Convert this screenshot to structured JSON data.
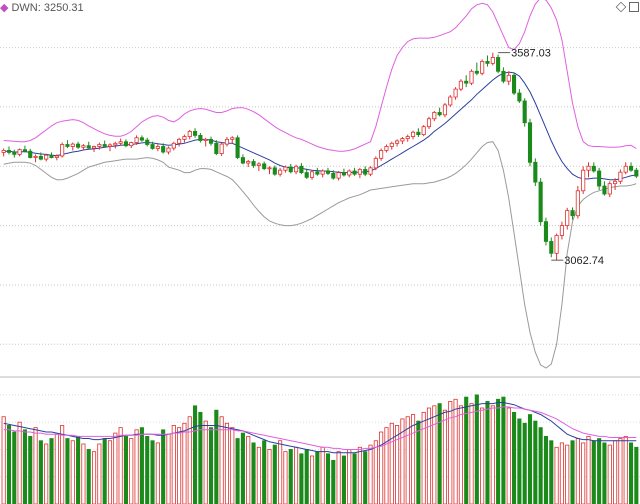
{
  "indicator": {
    "label": "DWN: 3250.31",
    "marker_color": "#c050c0"
  },
  "toolbar": {
    "icons": [
      "diamond-icon",
      "square-icon"
    ]
  },
  "colors": {
    "up": "#e03030",
    "down": "#1a8a1a",
    "ma": "#2b3fa0",
    "upper_band": "#e060e0",
    "lower_band": "#9a9a9a"
  },
  "chart_data": {
    "type": "candlestick",
    "annotations": [
      {
        "text": "3587.03",
        "price": 3587.03,
        "index": 93
      },
      {
        "text": "3062.74",
        "price": 3062.74,
        "index": 103
      }
    ],
    "price": {
      "ylim": [
        2780,
        3700
      ],
      "gridlines": [
        3600,
        3450,
        3300,
        3150,
        3000,
        2850
      ],
      "grid": true
    },
    "candles": [
      [
        3335,
        3345,
        3325,
        3340
      ],
      [
        3340,
        3350,
        3330,
        3335
      ],
      [
        3335,
        3342,
        3322,
        3330
      ],
      [
        3330,
        3345,
        3325,
        3342
      ],
      [
        3342,
        3352,
        3335,
        3338
      ],
      [
        3338,
        3344,
        3320,
        3322
      ],
      [
        3322,
        3330,
        3310,
        3325
      ],
      [
        3325,
        3335,
        3315,
        3318
      ],
      [
        3318,
        3330,
        3312,
        3328
      ],
      [
        3328,
        3335,
        3320,
        3322
      ],
      [
        3322,
        3330,
        3315,
        3326
      ],
      [
        3326,
        3360,
        3322,
        3355
      ],
      [
        3355,
        3366,
        3346,
        3350
      ],
      [
        3350,
        3360,
        3340,
        3356
      ],
      [
        3356,
        3362,
        3344,
        3348
      ],
      [
        3348,
        3356,
        3340,
        3352
      ],
      [
        3352,
        3362,
        3344,
        3346
      ],
      [
        3346,
        3352,
        3336,
        3350
      ],
      [
        3350,
        3360,
        3342,
        3355
      ],
      [
        3355,
        3365,
        3348,
        3350
      ],
      [
        3350,
        3358,
        3338,
        3354
      ],
      [
        3354,
        3362,
        3345,
        3358
      ],
      [
        3358,
        3370,
        3352,
        3362
      ],
      [
        3362,
        3368,
        3348,
        3352
      ],
      [
        3352,
        3362,
        3346,
        3360
      ],
      [
        3360,
        3378,
        3354,
        3372
      ],
      [
        3372,
        3378,
        3362,
        3366
      ],
      [
        3366,
        3372,
        3350,
        3355
      ],
      [
        3355,
        3362,
        3342,
        3345
      ],
      [
        3345,
        3356,
        3338,
        3350
      ],
      [
        3350,
        3358,
        3332,
        3336
      ],
      [
        3336,
        3350,
        3330,
        3346
      ],
      [
        3346,
        3362,
        3340,
        3358
      ],
      [
        3358,
        3372,
        3350,
        3368
      ],
      [
        3368,
        3380,
        3360,
        3375
      ],
      [
        3375,
        3392,
        3368,
        3388
      ],
      [
        3388,
        3396,
        3372,
        3378
      ],
      [
        3378,
        3384,
        3360,
        3365
      ],
      [
        3365,
        3372,
        3350,
        3368
      ],
      [
        3368,
        3375,
        3352,
        3358
      ],
      [
        3358,
        3366,
        3328,
        3332
      ],
      [
        3332,
        3360,
        3326,
        3356
      ],
      [
        3356,
        3374,
        3350,
        3368
      ],
      [
        3368,
        3376,
        3358,
        3372
      ],
      [
        3372,
        3378,
        3318,
        3322
      ],
      [
        3322,
        3330,
        3305,
        3308
      ],
      [
        3308,
        3316,
        3298,
        3312
      ],
      [
        3312,
        3318,
        3296,
        3302
      ],
      [
        3302,
        3310,
        3288,
        3306
      ],
      [
        3306,
        3312,
        3290,
        3294
      ],
      [
        3294,
        3300,
        3280,
        3296
      ],
      [
        3296,
        3302,
        3276,
        3280
      ],
      [
        3280,
        3296,
        3274,
        3290
      ],
      [
        3290,
        3302,
        3284,
        3298
      ],
      [
        3298,
        3306,
        3282,
        3286
      ],
      [
        3286,
        3304,
        3280,
        3300
      ],
      [
        3300,
        3308,
        3280,
        3284
      ],
      [
        3284,
        3294,
        3268,
        3272
      ],
      [
        3272,
        3290,
        3266,
        3286
      ],
      [
        3286,
        3296,
        3276,
        3280
      ],
      [
        3280,
        3292,
        3272,
        3288
      ],
      [
        3288,
        3296,
        3278,
        3282
      ],
      [
        3282,
        3290,
        3266,
        3270
      ],
      [
        3270,
        3288,
        3264,
        3284
      ],
      [
        3284,
        3294,
        3274,
        3278
      ],
      [
        3278,
        3292,
        3272,
        3288
      ],
      [
        3288,
        3296,
        3276,
        3280
      ],
      [
        3280,
        3296,
        3270,
        3292
      ],
      [
        3292,
        3300,
        3275,
        3280
      ],
      [
        3280,
        3300,
        3275,
        3296
      ],
      [
        3296,
        3325,
        3290,
        3320
      ],
      [
        3320,
        3345,
        3314,
        3340
      ],
      [
        3340,
        3355,
        3335,
        3350
      ],
      [
        3350,
        3362,
        3342,
        3358
      ],
      [
        3358,
        3368,
        3350,
        3364
      ],
      [
        3364,
        3374,
        3356,
        3370
      ],
      [
        3370,
        3380,
        3362,
        3375
      ],
      [
        3375,
        3390,
        3368,
        3386
      ],
      [
        3386,
        3396,
        3374,
        3380
      ],
      [
        3380,
        3404,
        3376,
        3400
      ],
      [
        3400,
        3425,
        3394,
        3420
      ],
      [
        3420,
        3440,
        3414,
        3436
      ],
      [
        3436,
        3448,
        3426,
        3430
      ],
      [
        3430,
        3460,
        3424,
        3455
      ],
      [
        3455,
        3480,
        3450,
        3475
      ],
      [
        3475,
        3500,
        3468,
        3495
      ],
      [
        3495,
        3520,
        3490,
        3515
      ],
      [
        3515,
        3530,
        3500,
        3510
      ],
      [
        3510,
        3545,
        3505,
        3540
      ],
      [
        3540,
        3562,
        3530,
        3535
      ],
      [
        3535,
        3570,
        3530,
        3565
      ],
      [
        3565,
        3580,
        3552,
        3560
      ],
      [
        3560,
        3587,
        3555,
        3575
      ],
      [
        3575,
        3582,
        3535,
        3540
      ],
      [
        3540,
        3550,
        3510,
        3515
      ],
      [
        3515,
        3540,
        3505,
        3530
      ],
      [
        3530,
        3534,
        3480,
        3485
      ],
      [
        3485,
        3495,
        3460,
        3465
      ],
      [
        3465,
        3472,
        3400,
        3410
      ],
      [
        3410,
        3420,
        3300,
        3310
      ],
      [
        3310,
        3320,
        3250,
        3260
      ],
      [
        3260,
        3270,
        3150,
        3160
      ],
      [
        3160,
        3170,
        3100,
        3110
      ],
      [
        3110,
        3120,
        3070,
        3080
      ],
      [
        3080,
        3130,
        3062.74,
        3125
      ],
      [
        3125,
        3160,
        3115,
        3150
      ],
      [
        3150,
        3195,
        3140,
        3188
      ],
      [
        3188,
        3196,
        3165,
        3175
      ],
      [
        3175,
        3250,
        3168,
        3238
      ],
      [
        3238,
        3300,
        3230,
        3290
      ],
      [
        3290,
        3310,
        3272,
        3300
      ],
      [
        3300,
        3310,
        3284,
        3288
      ],
      [
        3288,
        3296,
        3240,
        3250
      ],
      [
        3250,
        3262,
        3226,
        3230
      ],
      [
        3230,
        3262,
        3222,
        3256
      ],
      [
        3256,
        3270,
        3240,
        3262
      ],
      [
        3262,
        3292,
        3255,
        3285
      ],
      [
        3285,
        3310,
        3280,
        3300
      ],
      [
        3300,
        3310,
        3286,
        3290
      ],
      [
        3290,
        3296,
        3270,
        3275
      ]
    ],
    "ma": [
      3338,
      3338,
      3336,
      3336,
      3337,
      3335,
      3333,
      3331,
      3330,
      3328,
      3327,
      3330,
      3333,
      3336,
      3338,
      3341,
      3343,
      3344,
      3346,
      3348,
      3350,
      3351,
      3353,
      3354,
      3355,
      3357,
      3359,
      3360,
      3359,
      3357,
      3355,
      3353,
      3354,
      3356,
      3358,
      3362,
      3366,
      3368,
      3368,
      3366,
      3362,
      3360,
      3358,
      3358,
      3352,
      3346,
      3340,
      3334,
      3328,
      3322,
      3316,
      3308,
      3302,
      3298,
      3296,
      3296,
      3295,
      3292,
      3290,
      3289,
      3288,
      3288,
      3286,
      3285,
      3284,
      3284,
      3285,
      3285,
      3286,
      3288,
      3294,
      3302,
      3310,
      3318,
      3326,
      3334,
      3342,
      3350,
      3358,
      3366,
      3376,
      3388,
      3398,
      3408,
      3420,
      3432,
      3444,
      3456,
      3468,
      3482,
      3494,
      3506,
      3518,
      3528,
      3535,
      3538,
      3536,
      3528,
      3510,
      3488,
      3460,
      3428,
      3396,
      3364,
      3336,
      3312,
      3294,
      3280,
      3272,
      3268,
      3268,
      3270,
      3270,
      3268,
      3266,
      3266,
      3268,
      3272,
      3276,
      3278
    ],
    "upper_band": [
      3365,
      3364,
      3363,
      3362,
      3362,
      3365,
      3372,
      3382,
      3392,
      3402,
      3410,
      3414,
      3416,
      3418,
      3416,
      3410,
      3402,
      3395,
      3388,
      3382,
      3378,
      3376,
      3376,
      3380,
      3388,
      3400,
      3412,
      3420,
      3426,
      3428,
      3424,
      3416,
      3412,
      3420,
      3432,
      3440,
      3444,
      3446,
      3444,
      3440,
      3436,
      3436,
      3440,
      3446,
      3448,
      3448,
      3444,
      3438,
      3430,
      3420,
      3410,
      3400,
      3392,
      3385,
      3378,
      3372,
      3368,
      3362,
      3356,
      3350,
      3346,
      3342,
      3340,
      3338,
      3338,
      3340,
      3344,
      3350,
      3356,
      3362,
      3400,
      3450,
      3500,
      3545,
      3580,
      3600,
      3615,
      3622,
      3624,
      3624,
      3624,
      3626,
      3630,
      3635,
      3640,
      3650,
      3665,
      3680,
      3698,
      3708,
      3712,
      3708,
      3690,
      3660,
      3630,
      3600,
      3595,
      3610,
      3640,
      3680,
      3710,
      3725,
      3720,
      3700,
      3670,
      3620,
      3540,
      3460,
      3400,
      3362,
      3352,
      3350,
      3350,
      3349,
      3348,
      3348,
      3349,
      3352,
      3353,
      3345
    ],
    "lower_band": [
      3305,
      3308,
      3310,
      3310,
      3310,
      3308,
      3302,
      3292,
      3282,
      3272,
      3266,
      3266,
      3270,
      3276,
      3282,
      3290,
      3298,
      3302,
      3306,
      3310,
      3312,
      3314,
      3316,
      3318,
      3318,
      3318,
      3320,
      3322,
      3320,
      3316,
      3310,
      3298,
      3294,
      3290,
      3284,
      3284,
      3290,
      3294,
      3294,
      3292,
      3286,
      3280,
      3274,
      3266,
      3252,
      3236,
      3220,
      3202,
      3186,
      3172,
      3162,
      3156,
      3152,
      3150,
      3150,
      3152,
      3156,
      3162,
      3168,
      3176,
      3184,
      3192,
      3200,
      3208,
      3214,
      3220,
      3224,
      3228,
      3234,
      3240,
      3242,
      3244,
      3246,
      3248,
      3250,
      3252,
      3254,
      3256,
      3256,
      3256,
      3258,
      3260,
      3264,
      3268,
      3274,
      3282,
      3292,
      3304,
      3318,
      3334,
      3350,
      3360,
      3362,
      3340,
      3290,
      3220,
      3130,
      3040,
      2950,
      2880,
      2830,
      2798,
      2790,
      2800,
      2850,
      2950,
      3080,
      3160,
      3200,
      3216,
      3226,
      3234,
      3238,
      3242,
      3246,
      3248,
      3250,
      3250,
      3252,
      3256
    ],
    "volume": {
      "ylim": [
        0,
        110
      ],
      "values": [
        80,
        72,
        66,
        75,
        68,
        62,
        70,
        58,
        55,
        60,
        64,
        72,
        60,
        58,
        62,
        55,
        50,
        48,
        55,
        60,
        58,
        65,
        70,
        62,
        60,
        68,
        70,
        62,
        58,
        56,
        68,
        64,
        72,
        70,
        74,
        80,
        90,
        84,
        76,
        70,
        86,
        80,
        74,
        70,
        60,
        65,
        62,
        56,
        52,
        58,
        50,
        54,
        58,
        48,
        50,
        52,
        46,
        50,
        44,
        48,
        52,
        46,
        40,
        48,
        44,
        50,
        46,
        52,
        48,
        54,
        58,
        66,
        70,
        74,
        72,
        78,
        80,
        82,
        76,
        84,
        88,
        90,
        92,
        86,
        94,
        96,
        90,
        98,
        92,
        100,
        88,
        94,
        90,
        96,
        98,
        88,
        84,
        78,
        74,
        82,
        76,
        70,
        62,
        58,
        52,
        56,
        54,
        58,
        60,
        56,
        62,
        58,
        60,
        56,
        54,
        58,
        60,
        62,
        56,
        52
      ]
    },
    "volume_ma": [
      74,
      73,
      72,
      71,
      70,
      69,
      68,
      67,
      66,
      66,
      65,
      64,
      63,
      62,
      61,
      60,
      60,
      59,
      59,
      60,
      60,
      61,
      62,
      63,
      63,
      64,
      64,
      64,
      64,
      63,
      63,
      64,
      65,
      66,
      67,
      69,
      71,
      72,
      72,
      72,
      72,
      71,
      70,
      69,
      68,
      67,
      65,
      63,
      61,
      59,
      57,
      56,
      55,
      54,
      53,
      52,
      51,
      50,
      49,
      48,
      48,
      48,
      47,
      47,
      47,
      47,
      47,
      48,
      49,
      50,
      52,
      54,
      57,
      60,
      63,
      66,
      69,
      72,
      74,
      76,
      78,
      80,
      82,
      84,
      85,
      87,
      88,
      89,
      90,
      91,
      92,
      92,
      92,
      93,
      93,
      92,
      91,
      89,
      87,
      86,
      84,
      82,
      79,
      76,
      72,
      68,
      64,
      62,
      60,
      59,
      59,
      58,
      58,
      58,
      58,
      58,
      58,
      58,
      58,
      58
    ],
    "volume_ma2": [
      68,
      68,
      67,
      67,
      66,
      66,
      65,
      65,
      64,
      64,
      64,
      63,
      63,
      63,
      62,
      62,
      62,
      62,
      62,
      62,
      62,
      62,
      63,
      63,
      63,
      63,
      64,
      64,
      64,
      64,
      64,
      64,
      65,
      65,
      66,
      66,
      67,
      68,
      68,
      68,
      68,
      68,
      68,
      68,
      67,
      67,
      66,
      65,
      64,
      63,
      62,
      61,
      60,
      59,
      58,
      57,
      56,
      55,
      54,
      53,
      52,
      52,
      51,
      51,
      50,
      50,
      50,
      50,
      51,
      51,
      52,
      53,
      55,
      57,
      59,
      61,
      63,
      65,
      67,
      69,
      71,
      73,
      75,
      77,
      79,
      80,
      82,
      83,
      84,
      85,
      86,
      87,
      88,
      88,
      89,
      89,
      88,
      88,
      87,
      86,
      85,
      84,
      82,
      80,
      78,
      75,
      72,
      69,
      67,
      65,
      64,
      63,
      62,
      62,
      61,
      61,
      61,
      61,
      61,
      61
    ]
  }
}
